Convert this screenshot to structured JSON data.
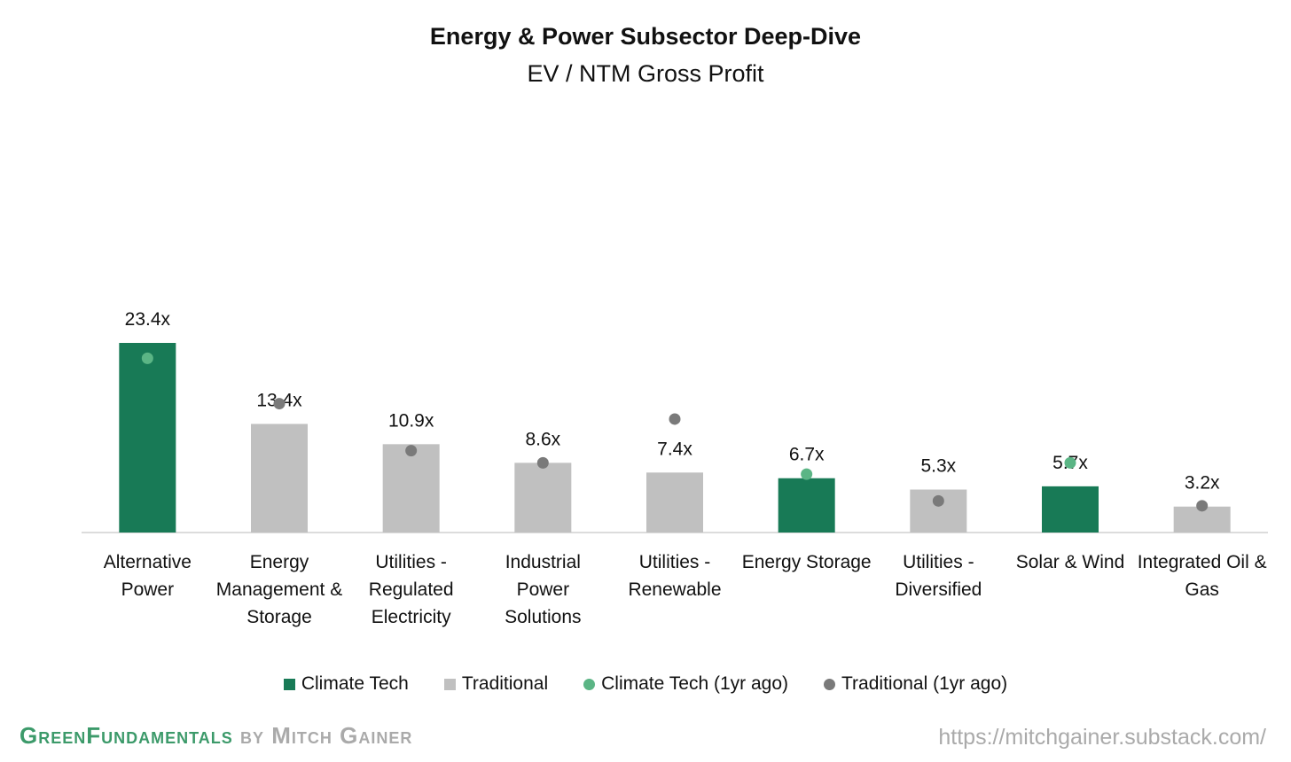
{
  "chart_data": {
    "type": "bar",
    "title": "Energy & Power Subsector Deep-Dive",
    "subtitle": "EV / NTM Gross Profit",
    "categories": [
      "Alternative Power",
      "Energy Management & Storage",
      "Utilities - Regulated Electricity",
      "Industrial Power Solutions",
      "Utilities - Renewable",
      "Energy Storage",
      "Utilities - Diversified",
      "Solar & Wind",
      "Integrated Oil & Gas"
    ],
    "series": [
      {
        "name": "Climate Tech",
        "type": "bar",
        "color": "#187a56",
        "values": [
          23.4,
          null,
          null,
          null,
          null,
          6.7,
          null,
          5.7,
          null
        ],
        "value_labels": [
          "23.4x",
          null,
          null,
          null,
          null,
          "6.7x",
          null,
          "5.7x",
          null
        ]
      },
      {
        "name": "Traditional",
        "type": "bar",
        "color": "#c0c0c0",
        "values": [
          null,
          13.4,
          10.9,
          8.6,
          7.4,
          null,
          5.3,
          null,
          3.2
        ],
        "value_labels": [
          null,
          "13.4x",
          "10.9x",
          "8.6x",
          "7.4x",
          null,
          "5.3x",
          null,
          "3.2x"
        ]
      },
      {
        "name": "Climate Tech (1yr ago)",
        "type": "dot",
        "color": "#5bb585",
        "values": [
          21.5,
          null,
          null,
          null,
          null,
          7.2,
          null,
          8.6,
          null
        ]
      },
      {
        "name": "Traditional (1yr ago)",
        "type": "dot",
        "color": "#7a7a7a",
        "values": [
          null,
          15.9,
          10.1,
          8.6,
          14.0,
          null,
          3.9,
          null,
          3.3
        ]
      }
    ],
    "legend": "bottom"
  },
  "footer": {
    "brand": "GreenFundamentals",
    "byline": "by Mitch Gainer",
    "url": "https://mitchgainer.substack.com/"
  }
}
